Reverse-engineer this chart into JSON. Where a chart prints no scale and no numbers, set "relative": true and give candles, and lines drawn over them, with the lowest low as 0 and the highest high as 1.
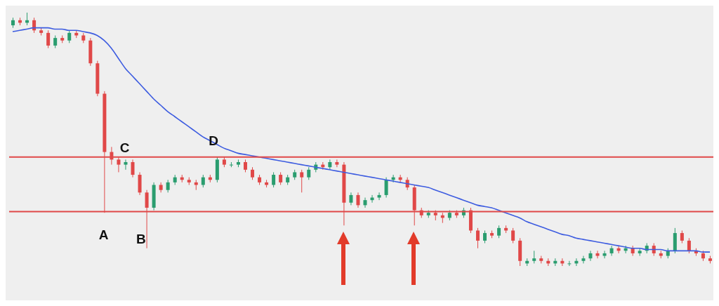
{
  "chart_data": {
    "type": "candlestick",
    "relative": true,
    "grid": false,
    "categories": [
      null,
      null,
      null,
      null,
      null,
      null,
      null,
      null,
      null,
      null,
      null,
      null,
      null,
      null,
      null,
      null,
      null,
      null,
      null,
      null,
      null,
      null,
      null,
      null,
      null,
      null,
      null,
      null,
      null,
      null,
      null,
      null,
      null,
      null,
      null,
      null,
      null,
      null,
      null,
      null,
      null,
      null,
      null,
      null,
      null,
      null,
      null,
      null,
      null,
      null,
      null,
      null,
      null,
      null,
      null,
      null,
      null,
      null,
      null,
      null,
      null,
      null,
      null,
      null,
      null,
      null,
      null,
      null,
      null,
      null,
      null,
      null,
      null,
      null,
      null,
      null,
      null,
      null,
      null,
      null,
      null,
      null,
      null,
      null,
      null,
      null,
      null,
      null,
      null,
      null,
      null,
      null,
      null,
      null,
      null,
      null,
      null,
      null,
      null,
      null
    ],
    "ohlc": [
      [
        0.95,
        0.98,
        0.94,
        0.97
      ],
      [
        0.97,
        0.98,
        0.95,
        0.96
      ],
      [
        0.96,
        1.0,
        0.95,
        0.97
      ],
      [
        0.97,
        0.98,
        0.92,
        0.93
      ],
      [
        0.93,
        0.94,
        0.91,
        0.92
      ],
      [
        0.92,
        0.93,
        0.86,
        0.87
      ],
      [
        0.87,
        0.91,
        0.86,
        0.9
      ],
      [
        0.9,
        0.91,
        0.88,
        0.89
      ],
      [
        0.89,
        0.93,
        0.88,
        0.92
      ],
      [
        0.92,
        0.93,
        0.9,
        0.91
      ],
      [
        0.91,
        0.92,
        0.88,
        0.89
      ],
      [
        0.89,
        0.9,
        0.79,
        0.8
      ],
      [
        0.8,
        0.81,
        0.67,
        0.68
      ],
      [
        0.68,
        0.69,
        0.21,
        0.45
      ],
      [
        0.45,
        0.47,
        0.4,
        0.42
      ],
      [
        0.42,
        0.43,
        0.37,
        0.4
      ],
      [
        0.4,
        0.42,
        0.38,
        0.41
      ],
      [
        0.41,
        0.42,
        0.35,
        0.36
      ],
      [
        0.36,
        0.37,
        0.28,
        0.29
      ],
      [
        0.29,
        0.3,
        0.07,
        0.23
      ],
      [
        0.23,
        0.33,
        0.22,
        0.32
      ],
      [
        0.32,
        0.33,
        0.29,
        0.3
      ],
      [
        0.3,
        0.34,
        0.29,
        0.33
      ],
      [
        0.33,
        0.36,
        0.32,
        0.35
      ],
      [
        0.35,
        0.36,
        0.33,
        0.34
      ],
      [
        0.34,
        0.35,
        0.32,
        0.33
      ],
      [
        0.33,
        0.34,
        0.3,
        0.32
      ],
      [
        0.32,
        0.36,
        0.31,
        0.35
      ],
      [
        0.35,
        0.36,
        0.33,
        0.34
      ],
      [
        0.34,
        0.43,
        0.33,
        0.42
      ],
      [
        0.42,
        0.43,
        0.39,
        0.4
      ],
      [
        0.4,
        0.41,
        0.39,
        0.4
      ],
      [
        0.4,
        0.42,
        0.39,
        0.41
      ],
      [
        0.41,
        0.42,
        0.37,
        0.38
      ],
      [
        0.38,
        0.39,
        0.34,
        0.35
      ],
      [
        0.35,
        0.36,
        0.32,
        0.33
      ],
      [
        0.33,
        0.34,
        0.31,
        0.32
      ],
      [
        0.32,
        0.37,
        0.31,
        0.36
      ],
      [
        0.36,
        0.37,
        0.32,
        0.33
      ],
      [
        0.33,
        0.36,
        0.32,
        0.35
      ],
      [
        0.35,
        0.38,
        0.34,
        0.37
      ],
      [
        0.37,
        0.38,
        0.29,
        0.35
      ],
      [
        0.35,
        0.39,
        0.34,
        0.38
      ],
      [
        0.38,
        0.41,
        0.37,
        0.4
      ],
      [
        0.4,
        0.41,
        0.38,
        0.39
      ],
      [
        0.39,
        0.42,
        0.38,
        0.41
      ],
      [
        0.41,
        0.42,
        0.39,
        0.4
      ],
      [
        0.4,
        0.41,
        0.16,
        0.25
      ],
      [
        0.25,
        0.29,
        0.24,
        0.28
      ],
      [
        0.28,
        0.29,
        0.23,
        0.24
      ],
      [
        0.24,
        0.27,
        0.23,
        0.26
      ],
      [
        0.26,
        0.28,
        0.25,
        0.27
      ],
      [
        0.27,
        0.29,
        0.26,
        0.28
      ],
      [
        0.28,
        0.35,
        0.27,
        0.34
      ],
      [
        0.34,
        0.36,
        0.33,
        0.35
      ],
      [
        0.35,
        0.36,
        0.33,
        0.34
      ],
      [
        0.34,
        0.35,
        0.3,
        0.31
      ],
      [
        0.31,
        0.32,
        0.16,
        0.22
      ],
      [
        0.22,
        0.23,
        0.19,
        0.2
      ],
      [
        0.2,
        0.22,
        0.19,
        0.21
      ],
      [
        0.21,
        0.22,
        0.18,
        0.2
      ],
      [
        0.2,
        0.21,
        0.17,
        0.19
      ],
      [
        0.19,
        0.22,
        0.18,
        0.21
      ],
      [
        0.21,
        0.22,
        0.19,
        0.2
      ],
      [
        0.2,
        0.23,
        0.19,
        0.22
      ],
      [
        0.22,
        0.23,
        0.13,
        0.14
      ],
      [
        0.14,
        0.15,
        0.07,
        0.1
      ],
      [
        0.1,
        0.14,
        0.09,
        0.13
      ],
      [
        0.13,
        0.14,
        0.11,
        0.12
      ],
      [
        0.12,
        0.16,
        0.11,
        0.15
      ],
      [
        0.15,
        0.16,
        0.13,
        0.14
      ],
      [
        0.14,
        0.15,
        0.09,
        0.1
      ],
      [
        0.1,
        0.11,
        0.0,
        0.02
      ],
      [
        0.01,
        0.03,
        0.0,
        0.02
      ],
      [
        0.02,
        0.06,
        0.01,
        0.03
      ],
      [
        0.03,
        0.04,
        0.01,
        0.02
      ],
      [
        0.02,
        0.03,
        0.0,
        0.01
      ],
      [
        0.01,
        0.03,
        0.0,
        0.02
      ],
      [
        0.02,
        0.03,
        0.0,
        0.01
      ],
      [
        0.01,
        0.02,
        0.0,
        0.01
      ],
      [
        0.01,
        0.03,
        0.0,
        0.02
      ],
      [
        0.02,
        0.04,
        0.01,
        0.03
      ],
      [
        0.03,
        0.06,
        0.02,
        0.05
      ],
      [
        0.05,
        0.06,
        0.03,
        0.04
      ],
      [
        0.04,
        0.06,
        0.03,
        0.05
      ],
      [
        0.05,
        0.08,
        0.04,
        0.07
      ],
      [
        0.07,
        0.08,
        0.05,
        0.06
      ],
      [
        0.06,
        0.08,
        0.05,
        0.07
      ],
      [
        0.07,
        0.08,
        0.04,
        0.05
      ],
      [
        0.05,
        0.07,
        0.04,
        0.06
      ],
      [
        0.06,
        0.09,
        0.05,
        0.08
      ],
      [
        0.08,
        0.09,
        0.04,
        0.05
      ],
      [
        0.05,
        0.06,
        0.03,
        0.04
      ],
      [
        0.04,
        0.07,
        0.03,
        0.06
      ],
      [
        0.06,
        0.15,
        0.05,
        0.13
      ],
      [
        0.13,
        0.14,
        0.09,
        0.1
      ],
      [
        0.1,
        0.11,
        0.05,
        0.06
      ],
      [
        0.06,
        0.07,
        0.04,
        0.05
      ],
      [
        0.05,
        0.06,
        0.02,
        0.03
      ],
      [
        0.03,
        0.04,
        0.01,
        0.02
      ]
    ],
    "series": [
      {
        "type": "line",
        "color": "#3d5ce0",
        "values": [
          0.925,
          0.93,
          0.935,
          0.94,
          0.94,
          0.94,
          0.935,
          0.935,
          0.93,
          0.93,
          0.925,
          0.92,
          0.91,
          0.89,
          0.86,
          0.82,
          0.78,
          0.75,
          0.72,
          0.69,
          0.66,
          0.635,
          0.61,
          0.59,
          0.57,
          0.55,
          0.53,
          0.51,
          0.495,
          0.48,
          0.465,
          0.455,
          0.445,
          0.44,
          0.435,
          0.43,
          0.425,
          0.42,
          0.415,
          0.41,
          0.405,
          0.4,
          0.395,
          0.39,
          0.385,
          0.38,
          0.375,
          0.37,
          0.365,
          0.36,
          0.355,
          0.35,
          0.345,
          0.34,
          0.335,
          0.33,
          0.325,
          0.32,
          0.315,
          0.31,
          0.3,
          0.29,
          0.28,
          0.27,
          0.26,
          0.25,
          0.24,
          0.235,
          0.23,
          0.22,
          0.21,
          0.2,
          0.19,
          0.175,
          0.165,
          0.155,
          0.145,
          0.135,
          0.125,
          0.12,
          0.11,
          0.105,
          0.1,
          0.095,
          0.09,
          0.085,
          0.08,
          0.075,
          0.07,
          0.07,
          0.065,
          0.065,
          0.065,
          0.06,
          0.06,
          0.06,
          0.06,
          0.06,
          0.055,
          0.055
        ]
      }
    ],
    "ref_lines": [
      {
        "axis": "y",
        "value": 0.43,
        "color": "#e04848"
      },
      {
        "axis": "y",
        "value": 0.215,
        "color": "#e04848"
      }
    ],
    "annotations": [
      "A",
      "B",
      "C",
      "D"
    ]
  }
}
